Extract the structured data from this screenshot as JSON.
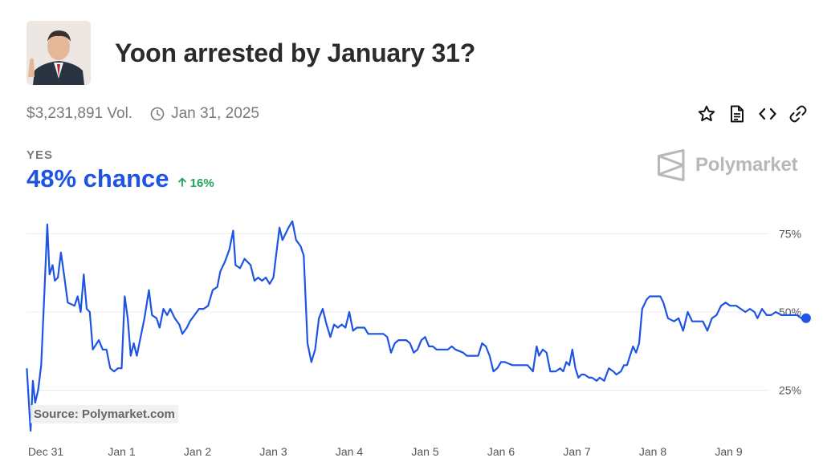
{
  "market": {
    "title": "Yoon arrested by January 31?",
    "volume": "$3,231,891 Vol.",
    "end_date": "Jan 31, 2025",
    "outcome_label": "YES",
    "chance_text": "48% chance",
    "delta_text": "16%",
    "brand": "Polymarket",
    "source": "Source: Polymarket.com"
  },
  "icons": {
    "clock": "clock-icon",
    "star": "star-icon",
    "document": "document-icon",
    "embed": "code-icon",
    "link": "link-icon",
    "arrow": "arrow-up-icon",
    "logo": "polymarket-logo-icon"
  },
  "colors": {
    "accent": "#1e54e4",
    "positive": "#22a35a",
    "muted": "#7a7a7a"
  },
  "chart_data": {
    "type": "line",
    "ylim": [
      10,
      80
    ],
    "xlim": [
      0,
      9.7
    ],
    "yticks": [
      25,
      50,
      75
    ],
    "ytick_labels": [
      "25%",
      "50%",
      "75%"
    ],
    "xticks": [
      0,
      1,
      2,
      3,
      4,
      5,
      6,
      7,
      8,
      9
    ],
    "xtick_labels": [
      "Dec 31",
      "Jan 1",
      "Jan 2",
      "Jan 3",
      "Jan 4",
      "Jan 5",
      "Jan 6",
      "Jan 7",
      "Jan 8",
      "Jan 9"
    ],
    "grid": true,
    "series": [
      {
        "values": [
          [
            -0.25,
            32
          ],
          [
            -0.22,
            20
          ],
          [
            -0.2,
            12
          ],
          [
            -0.17,
            28
          ],
          [
            -0.14,
            21
          ],
          [
            -0.1,
            25
          ],
          [
            -0.06,
            33
          ],
          [
            -0.02,
            55
          ],
          [
            0.02,
            78
          ],
          [
            0.05,
            62
          ],
          [
            0.09,
            65
          ],
          [
            0.12,
            60
          ],
          [
            0.16,
            61
          ],
          [
            0.2,
            69
          ],
          [
            0.24,
            62
          ],
          [
            0.29,
            53
          ],
          [
            0.38,
            52
          ],
          [
            0.42,
            55
          ],
          [
            0.46,
            50
          ],
          [
            0.5,
            62
          ],
          [
            0.54,
            51
          ],
          [
            0.58,
            50
          ],
          [
            0.62,
            38
          ],
          [
            0.7,
            41
          ],
          [
            0.75,
            38
          ],
          [
            0.8,
            38
          ],
          [
            0.85,
            32
          ],
          [
            0.9,
            31
          ],
          [
            0.95,
            32
          ],
          [
            1.0,
            32
          ],
          [
            1.04,
            55
          ],
          [
            1.08,
            48
          ],
          [
            1.12,
            36
          ],
          [
            1.16,
            40
          ],
          [
            1.2,
            36
          ],
          [
            1.3,
            48
          ],
          [
            1.36,
            57
          ],
          [
            1.4,
            49
          ],
          [
            1.46,
            48
          ],
          [
            1.5,
            45
          ],
          [
            1.55,
            51
          ],
          [
            1.6,
            49
          ],
          [
            1.64,
            51
          ],
          [
            1.7,
            48
          ],
          [
            1.76,
            46
          ],
          [
            1.8,
            43
          ],
          [
            1.86,
            45
          ],
          [
            1.9,
            47
          ],
          [
            1.96,
            49
          ],
          [
            2.02,
            51
          ],
          [
            2.08,
            51
          ],
          [
            2.14,
            52
          ],
          [
            2.2,
            57
          ],
          [
            2.26,
            58
          ],
          [
            2.3,
            63
          ],
          [
            2.36,
            66
          ],
          [
            2.42,
            70
          ],
          [
            2.47,
            76
          ],
          [
            2.5,
            65
          ],
          [
            2.56,
            64
          ],
          [
            2.62,
            67
          ],
          [
            2.7,
            65
          ],
          [
            2.75,
            60
          ],
          [
            2.8,
            61
          ],
          [
            2.85,
            60
          ],
          [
            2.9,
            61
          ],
          [
            2.95,
            59
          ],
          [
            3.0,
            61
          ],
          [
            3.04,
            69
          ],
          [
            3.08,
            77
          ],
          [
            3.12,
            73
          ],
          [
            3.2,
            77
          ],
          [
            3.25,
            79
          ],
          [
            3.3,
            73
          ],
          [
            3.36,
            71
          ],
          [
            3.4,
            68
          ],
          [
            3.45,
            40
          ],
          [
            3.5,
            34
          ],
          [
            3.55,
            38
          ],
          [
            3.6,
            48
          ],
          [
            3.65,
            51
          ],
          [
            3.7,
            46
          ],
          [
            3.75,
            42
          ],
          [
            3.8,
            46
          ],
          [
            3.85,
            45
          ],
          [
            3.9,
            46
          ],
          [
            3.95,
            45
          ],
          [
            4.0,
            50
          ],
          [
            4.05,
            44
          ],
          [
            4.1,
            45
          ],
          [
            4.2,
            45
          ],
          [
            4.25,
            43
          ],
          [
            4.35,
            43
          ],
          [
            4.45,
            43
          ],
          [
            4.5,
            42
          ],
          [
            4.55,
            37
          ],
          [
            4.6,
            40
          ],
          [
            4.65,
            41
          ],
          [
            4.75,
            41
          ],
          [
            4.8,
            40
          ],
          [
            4.85,
            37
          ],
          [
            4.9,
            38
          ],
          [
            4.95,
            41
          ],
          [
            5.0,
            42
          ],
          [
            5.05,
            39
          ],
          [
            5.1,
            39
          ],
          [
            5.15,
            38
          ],
          [
            5.2,
            38
          ],
          [
            5.3,
            38
          ],
          [
            5.35,
            39
          ],
          [
            5.4,
            38
          ],
          [
            5.5,
            37
          ],
          [
            5.55,
            36
          ],
          [
            5.65,
            36
          ],
          [
            5.7,
            36
          ],
          [
            5.75,
            40
          ],
          [
            5.8,
            39
          ],
          [
            5.85,
            36
          ],
          [
            5.9,
            31
          ],
          [
            5.95,
            32
          ],
          [
            6.0,
            34
          ],
          [
            6.05,
            34
          ],
          [
            6.15,
            33
          ],
          [
            6.25,
            33
          ],
          [
            6.35,
            33
          ],
          [
            6.42,
            31
          ],
          [
            6.47,
            39
          ],
          [
            6.5,
            36
          ],
          [
            6.55,
            38
          ],
          [
            6.6,
            37
          ],
          [
            6.65,
            31
          ],
          [
            6.72,
            31
          ],
          [
            6.78,
            32
          ],
          [
            6.82,
            31
          ],
          [
            6.86,
            34
          ],
          [
            6.9,
            33
          ],
          [
            6.94,
            38
          ],
          [
            6.98,
            32
          ],
          [
            7.02,
            29
          ],
          [
            7.06,
            30
          ],
          [
            7.1,
            30
          ],
          [
            7.16,
            29
          ],
          [
            7.2,
            29
          ],
          [
            7.26,
            28
          ],
          [
            7.3,
            29
          ],
          [
            7.36,
            28
          ],
          [
            7.42,
            32
          ],
          [
            7.48,
            31
          ],
          [
            7.52,
            30
          ],
          [
            7.58,
            31
          ],
          [
            7.62,
            33
          ],
          [
            7.66,
            33
          ],
          [
            7.7,
            36
          ],
          [
            7.74,
            39
          ],
          [
            7.78,
            37
          ],
          [
            7.82,
            40
          ],
          [
            7.86,
            51
          ],
          [
            7.92,
            54
          ],
          [
            7.96,
            55
          ],
          [
            8.04,
            55
          ],
          [
            8.1,
            55
          ],
          [
            8.14,
            53
          ],
          [
            8.2,
            48
          ],
          [
            8.28,
            47
          ],
          [
            8.34,
            48
          ],
          [
            8.4,
            44
          ],
          [
            8.46,
            50
          ],
          [
            8.52,
            47
          ],
          [
            8.58,
            47
          ],
          [
            8.66,
            47
          ],
          [
            8.72,
            44
          ],
          [
            8.78,
            48
          ],
          [
            8.84,
            49
          ],
          [
            8.9,
            52
          ],
          [
            8.96,
            53
          ],
          [
            9.02,
            52
          ],
          [
            9.1,
            52
          ],
          [
            9.16,
            51
          ],
          [
            9.22,
            50
          ],
          [
            9.28,
            51
          ],
          [
            9.34,
            50
          ],
          [
            9.38,
            48
          ],
          [
            9.44,
            51
          ],
          [
            9.5,
            49
          ],
          [
            9.56,
            49
          ],
          [
            9.62,
            50
          ],
          [
            9.7,
            49
          ],
          [
            9.8,
            49
          ],
          [
            9.9,
            49
          ],
          [
            9.96,
            48
          ],
          [
            10.02,
            48
          ]
        ]
      }
    ]
  }
}
